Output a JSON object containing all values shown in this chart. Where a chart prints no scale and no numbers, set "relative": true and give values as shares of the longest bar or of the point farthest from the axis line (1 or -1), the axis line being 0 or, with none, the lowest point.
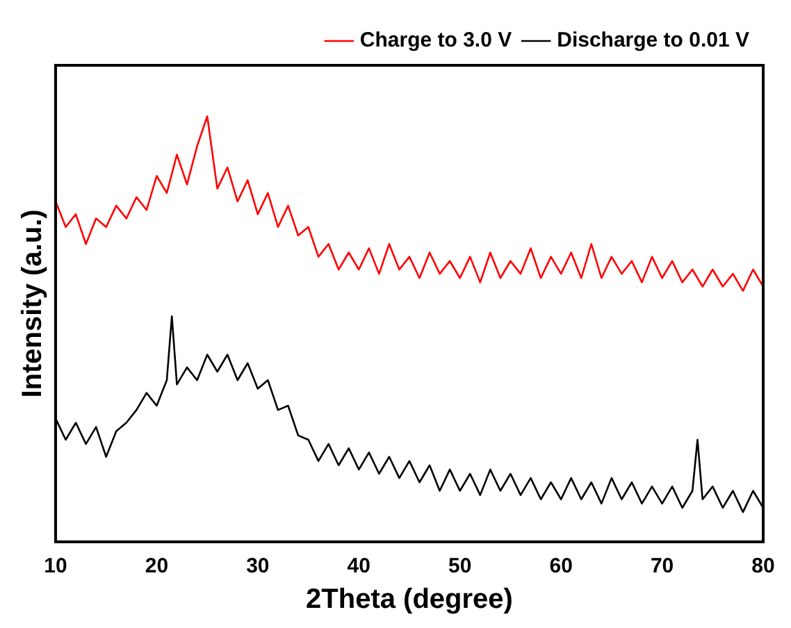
{
  "chart_data": {
    "type": "line",
    "relative": true,
    "xlabel": "2Theta (degree)",
    "ylabel": "Intensity (a.u.)",
    "xlim": [
      10,
      80
    ],
    "xticks": [
      10,
      20,
      30,
      40,
      50,
      60,
      70,
      80
    ],
    "grid": false,
    "legend": "top right",
    "marker": "none",
    "line_style": "solid",
    "tick_labels": "x",
    "series": [
      {
        "name": "Charge to 3.0 V",
        "color": "#ff0000",
        "x": [
          10,
          11,
          12,
          13,
          14,
          15,
          16,
          17,
          18,
          19,
          20,
          21,
          22,
          23,
          24,
          25,
          26,
          27,
          28,
          29,
          30,
          31,
          32,
          33,
          34,
          35,
          36,
          37,
          38,
          39,
          40,
          41,
          42,
          43,
          44,
          45,
          46,
          47,
          48,
          49,
          50,
          51,
          52,
          53,
          54,
          55,
          56,
          57,
          58,
          59,
          60,
          61,
          62,
          63,
          64,
          65,
          66,
          67,
          68,
          69,
          70,
          71,
          72,
          73,
          74,
          75,
          76,
          77,
          78,
          79,
          80
        ],
        "values": [
          0.8,
          0.74,
          0.77,
          0.7,
          0.76,
          0.74,
          0.79,
          0.76,
          0.81,
          0.78,
          0.86,
          0.82,
          0.91,
          0.84,
          0.93,
          1.0,
          0.83,
          0.88,
          0.8,
          0.85,
          0.77,
          0.82,
          0.74,
          0.79,
          0.72,
          0.74,
          0.67,
          0.7,
          0.64,
          0.68,
          0.64,
          0.69,
          0.63,
          0.7,
          0.64,
          0.67,
          0.62,
          0.68,
          0.63,
          0.66,
          0.62,
          0.67,
          0.61,
          0.68,
          0.62,
          0.66,
          0.63,
          0.69,
          0.62,
          0.67,
          0.63,
          0.68,
          0.62,
          0.7,
          0.62,
          0.67,
          0.63,
          0.66,
          0.61,
          0.67,
          0.62,
          0.66,
          0.61,
          0.64,
          0.6,
          0.64,
          0.6,
          0.63,
          0.59,
          0.64,
          0.6
        ]
      },
      {
        "name": "Discharge to 0.01 V",
        "color": "#000000",
        "x": [
          10,
          11,
          12,
          13,
          14,
          15,
          16,
          17,
          18,
          19,
          20,
          21,
          21.5,
          22,
          23,
          24,
          25,
          26,
          27,
          28,
          29,
          30,
          31,
          32,
          33,
          34,
          35,
          36,
          37,
          38,
          39,
          40,
          41,
          42,
          43,
          44,
          45,
          46,
          47,
          48,
          49,
          50,
          51,
          52,
          53,
          54,
          55,
          56,
          57,
          58,
          59,
          60,
          61,
          62,
          63,
          64,
          65,
          66,
          67,
          68,
          69,
          70,
          71,
          72,
          73,
          73.5,
          74,
          75,
          76,
          77,
          78,
          79,
          80
        ],
        "values": [
          0.29,
          0.24,
          0.28,
          0.23,
          0.27,
          0.2,
          0.26,
          0.28,
          0.31,
          0.35,
          0.32,
          0.38,
          0.53,
          0.37,
          0.41,
          0.38,
          0.44,
          0.4,
          0.44,
          0.38,
          0.42,
          0.36,
          0.38,
          0.31,
          0.32,
          0.25,
          0.24,
          0.19,
          0.23,
          0.18,
          0.22,
          0.17,
          0.21,
          0.16,
          0.2,
          0.15,
          0.19,
          0.14,
          0.18,
          0.12,
          0.17,
          0.12,
          0.16,
          0.11,
          0.17,
          0.12,
          0.16,
          0.11,
          0.15,
          0.1,
          0.14,
          0.1,
          0.15,
          0.1,
          0.14,
          0.09,
          0.15,
          0.1,
          0.14,
          0.09,
          0.13,
          0.09,
          0.13,
          0.08,
          0.12,
          0.24,
          0.1,
          0.13,
          0.08,
          0.12,
          0.07,
          0.12,
          0.08
        ]
      }
    ]
  }
}
